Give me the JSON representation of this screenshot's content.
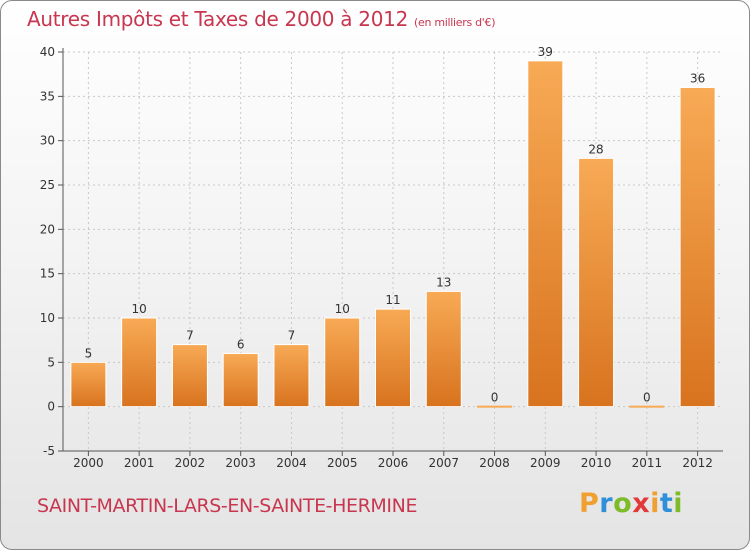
{
  "title": {
    "main": "Autres Impôts et Taxes de 2000 à 2012",
    "unit": "(en milliers d'€)"
  },
  "commune": "SAINT-MARTIN-LARS-EN-SAINTE-HERMINE",
  "brand": {
    "letters": [
      "P",
      "r",
      "o",
      "x",
      "i",
      "t",
      "i"
    ],
    "colors": [
      "#f0a030",
      "#2f8fd8",
      "#7dbb2a",
      "#e23a3a",
      "#f0a030",
      "#2f8fd8",
      "#7dbb2a"
    ]
  },
  "colors": {
    "title": "#c8364f",
    "bar_light": "#f8aa55",
    "bar_dark": "#d8731f",
    "axis": "#555555",
    "grid": "#c8c8c8"
  },
  "chart_data": {
    "type": "bar",
    "categories": [
      "2000",
      "2001",
      "2002",
      "2003",
      "2004",
      "2005",
      "2006",
      "2007",
      "2008",
      "2009",
      "2010",
      "2011",
      "2012"
    ],
    "values": [
      5,
      10,
      7,
      6,
      7,
      10,
      11,
      13,
      0,
      39,
      28,
      0,
      36
    ],
    "data_labels": [
      "5",
      "10",
      "7",
      "6",
      "7",
      "10",
      "11",
      "13",
      "0",
      "39",
      "28",
      "0",
      "36"
    ],
    "title": "Autres Impôts et Taxes de 2000 à 2012",
    "ylim": [
      -5,
      40
    ],
    "yticks": [
      -5,
      0,
      5,
      10,
      15,
      20,
      25,
      30,
      35,
      40
    ],
    "ytick_labels": [
      "-5",
      "0",
      "5",
      "10",
      "15",
      "20",
      "25",
      "30",
      "35",
      "40"
    ],
    "grid": true,
    "legend": "none"
  }
}
